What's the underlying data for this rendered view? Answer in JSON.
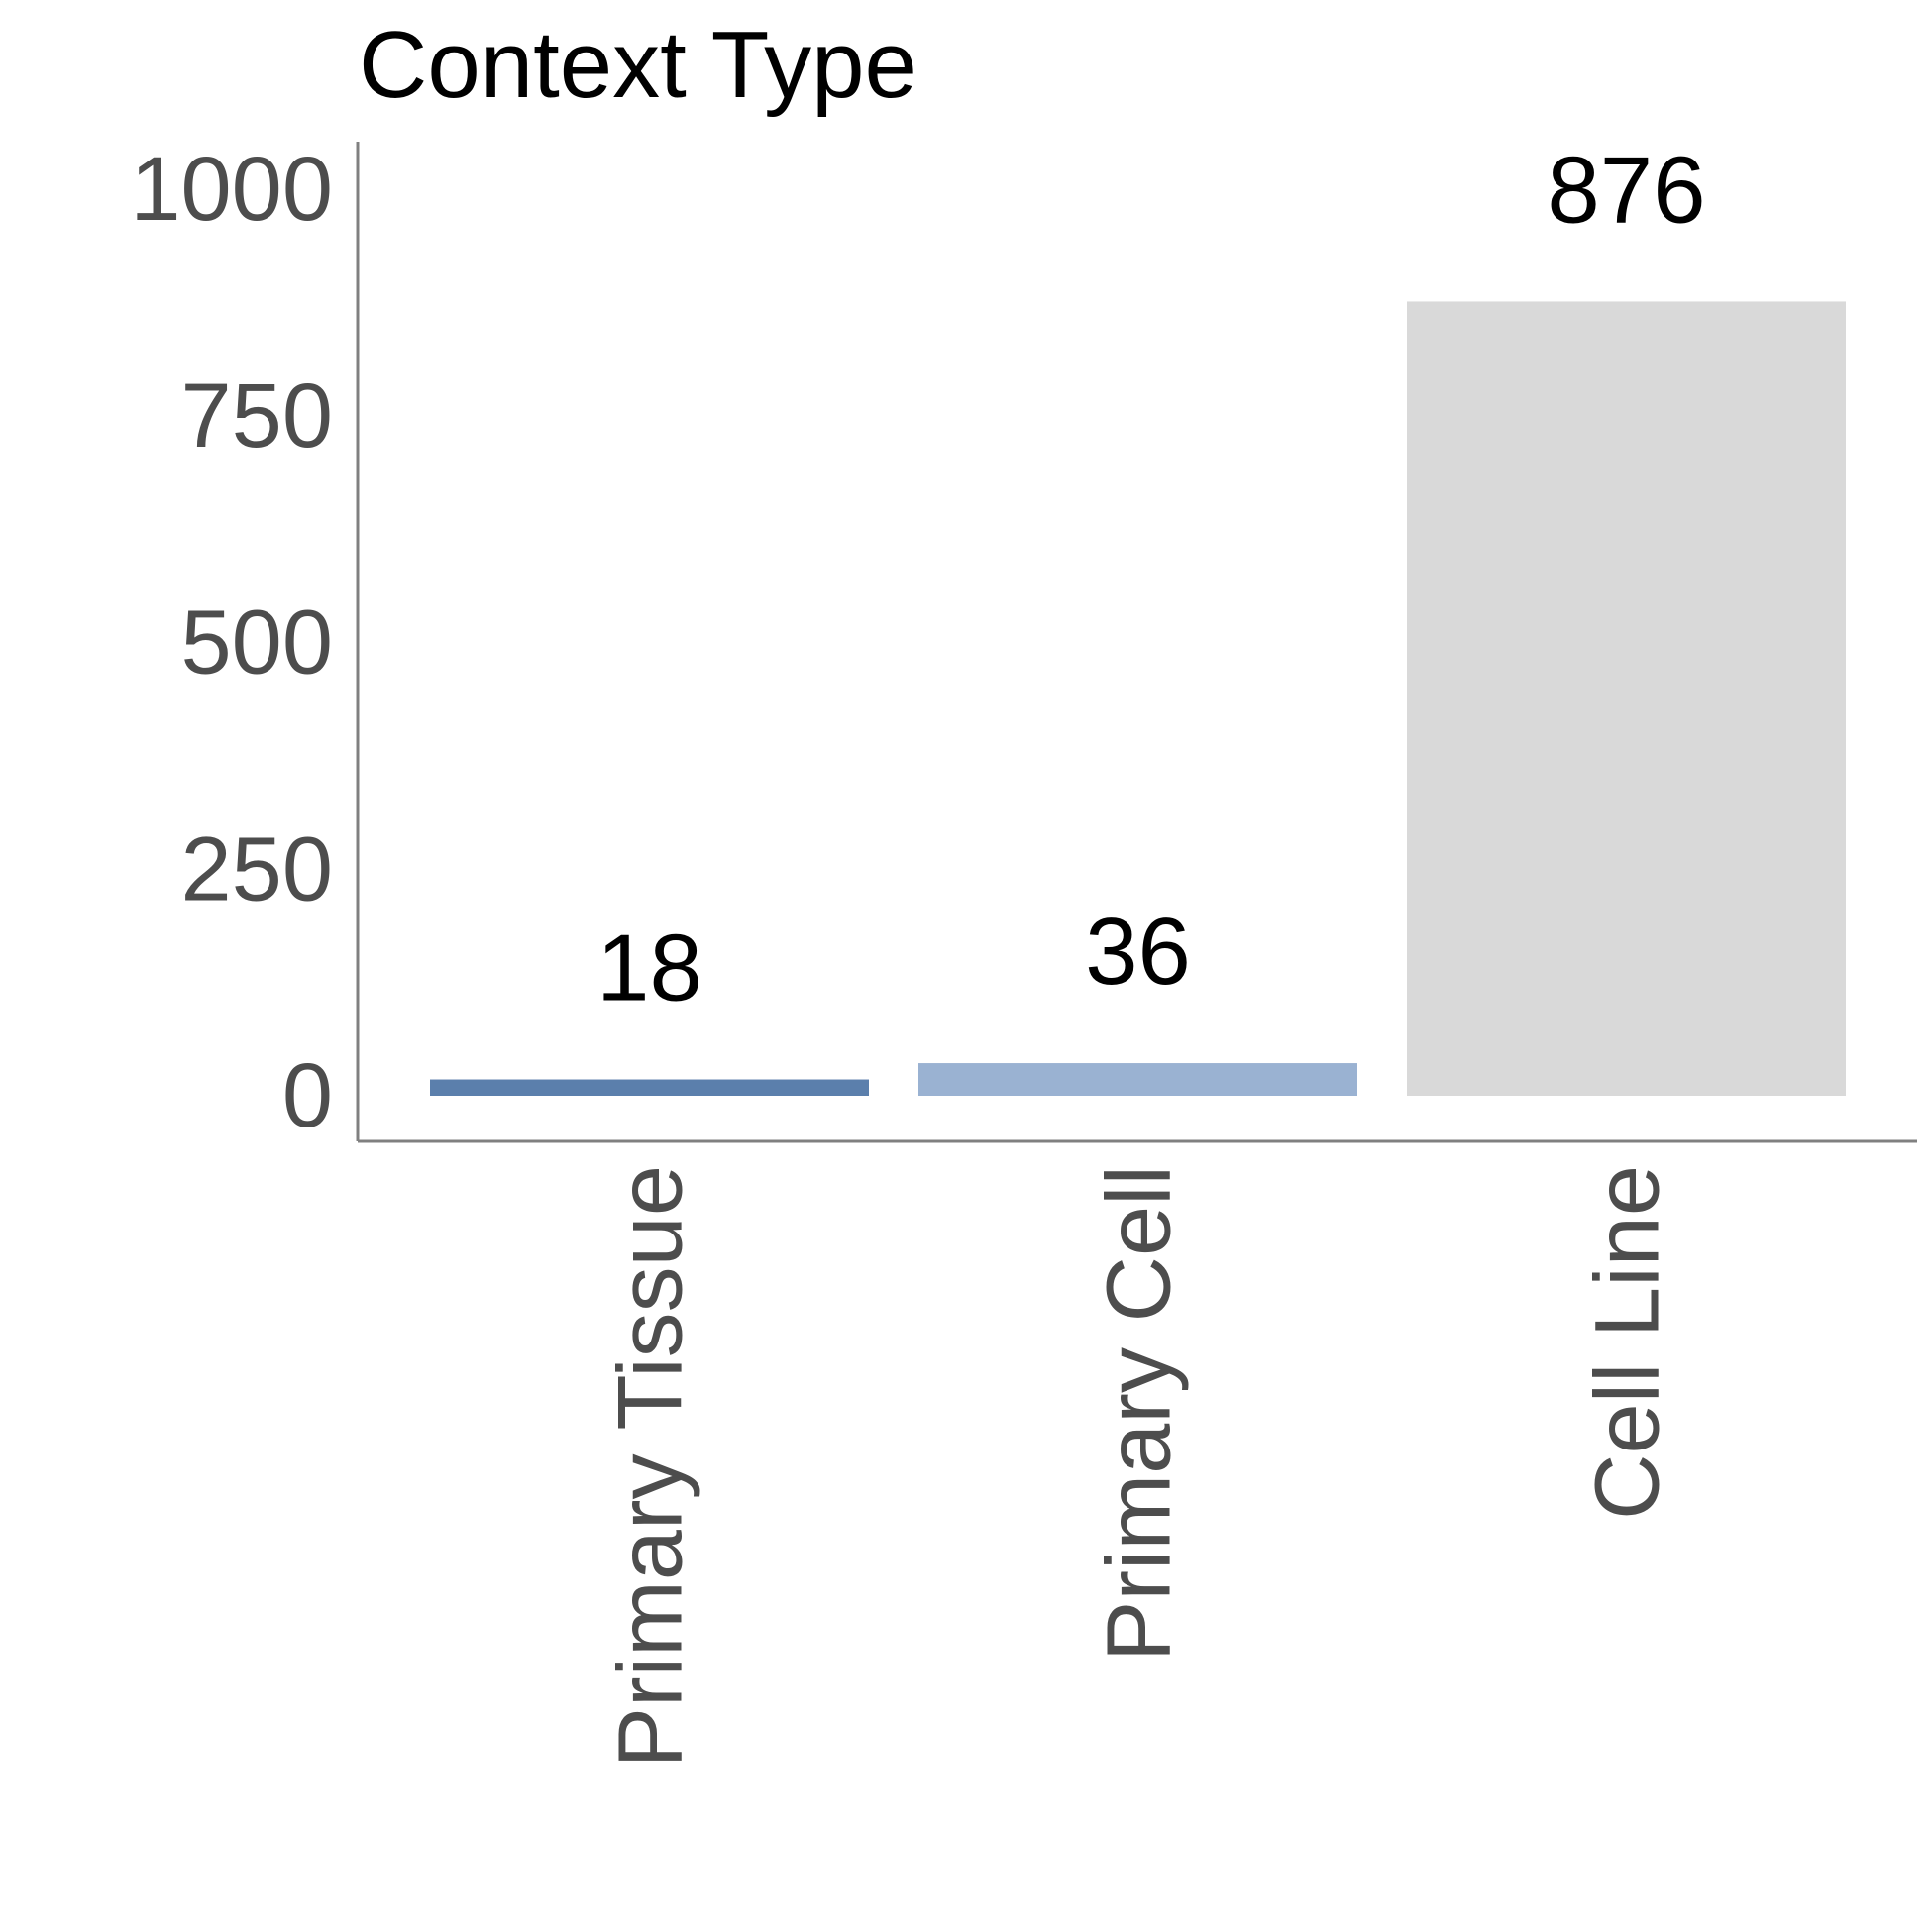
{
  "chart_data": {
    "type": "bar",
    "title": "Context Type",
    "categories": [
      "Primary Tissue",
      "Primary Cell",
      "Cell Line"
    ],
    "values": [
      18,
      36,
      876
    ],
    "data_labels": [
      "18",
      "36",
      "876"
    ],
    "ylim": [
      0,
      1000
    ],
    "yticks": [
      0,
      250,
      500,
      750,
      1000
    ],
    "ytick_labels": [
      "0",
      "250",
      "500",
      "750",
      "1000"
    ],
    "colors": [
      "#5b7fac",
      "#9ab2d2",
      "#d9d9d9"
    ],
    "grid": false,
    "legend": "none"
  }
}
